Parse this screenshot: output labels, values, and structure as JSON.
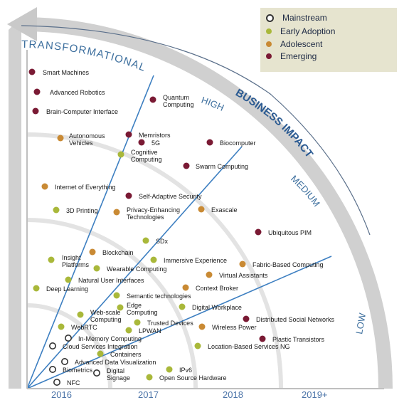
{
  "legend": [
    {
      "label": "Mainstream",
      "color": "#ffffff",
      "stroke": "#333333"
    },
    {
      "label": "Early Adoption",
      "color": "#a9b83a"
    },
    {
      "label": "Adolescent",
      "color": "#c98a34"
    },
    {
      "label": "Emerging",
      "color": "#7a1a34"
    }
  ],
  "axis": {
    "label": "BUSINESS IMPACT"
  },
  "impact_levels": {
    "transformational": "TRANSFORMATIONAL",
    "high": "HIGH",
    "medium": "MEDIUM",
    "low": "LOW"
  },
  "years": [
    "2016",
    "2017",
    "2018",
    "2019+"
  ],
  "items": [
    {
      "name": "Smart Machines",
      "stage": "Emerging"
    },
    {
      "name": "Advanced Robotics",
      "stage": "Emerging"
    },
    {
      "name": "Brain-Computer Interface",
      "stage": "Emerging"
    },
    {
      "name": "Quantum Computing",
      "stage": "Emerging"
    },
    {
      "name": "Memristors",
      "stage": "Emerging"
    },
    {
      "name": "5G",
      "stage": "Emerging"
    },
    {
      "name": "Biocomputer",
      "stage": "Emerging"
    },
    {
      "name": "Autonomous Vehicles",
      "stage": "Adolescent"
    },
    {
      "name": "Cognitive Computing",
      "stage": "Early Adoption"
    },
    {
      "name": "Swarm Computing",
      "stage": "Emerging"
    },
    {
      "name": "Internet of Everything",
      "stage": "Adolescent"
    },
    {
      "name": "Self-Adaptive Security",
      "stage": "Emerging"
    },
    {
      "name": "3D Printing",
      "stage": "Early Adoption"
    },
    {
      "name": "Privacy-Enhancing Technologies",
      "stage": "Adolescent"
    },
    {
      "name": "Exascale",
      "stage": "Adolescent"
    },
    {
      "name": "Ubiquitous PIM",
      "stage": "Emerging"
    },
    {
      "name": "SDx",
      "stage": "Early Adoption"
    },
    {
      "name": "Blockchain",
      "stage": "Adolescent"
    },
    {
      "name": "Insight Platforms",
      "stage": "Early Adoption"
    },
    {
      "name": "Immersive Experience",
      "stage": "Early Adoption"
    },
    {
      "name": "Wearable Computing",
      "stage": "Early Adoption"
    },
    {
      "name": "Fabric-Based Computing",
      "stage": "Adolescent"
    },
    {
      "name": "Virtual Assistants",
      "stage": "Adolescent"
    },
    {
      "name": "Natural User Interfaces",
      "stage": "Early Adoption"
    },
    {
      "name": "Deep Learning",
      "stage": "Early Adoption"
    },
    {
      "name": "Context Broker",
      "stage": "Adolescent"
    },
    {
      "name": "Semantic technologies",
      "stage": "Early Adoption"
    },
    {
      "name": "Edge Computing",
      "stage": "Early Adoption"
    },
    {
      "name": "Digital Workplace",
      "stage": "Early Adoption"
    },
    {
      "name": "Web-scale Computing",
      "stage": "Early Adoption"
    },
    {
      "name": "Distributed Social Networks",
      "stage": "Emerging"
    },
    {
      "name": "Trusted Devices",
      "stage": "Early Adoption"
    },
    {
      "name": "WebRTC",
      "stage": "Early Adoption"
    },
    {
      "name": "LPWAN",
      "stage": "Early Adoption"
    },
    {
      "name": "Wireless Power",
      "stage": "Adolescent"
    },
    {
      "name": "In-Memory Computing",
      "stage": "Mainstream"
    },
    {
      "name": "Plastic Transistors",
      "stage": "Emerging"
    },
    {
      "name": "Cloud Services Integration",
      "stage": "Mainstream"
    },
    {
      "name": "Location-Based Services NG",
      "stage": "Early Adoption"
    },
    {
      "name": "Containers",
      "stage": "Early Adoption"
    },
    {
      "name": "Advanced Data Visualization",
      "stage": "Mainstream"
    },
    {
      "name": "Biometrics",
      "stage": "Mainstream"
    },
    {
      "name": "IPv6",
      "stage": "Early Adoption"
    },
    {
      "name": "Digital Signage",
      "stage": "Mainstream"
    },
    {
      "name": "Open Source Hardware",
      "stage": "Early Adoption"
    },
    {
      "name": "NFC",
      "stage": "Mainstream"
    }
  ]
}
